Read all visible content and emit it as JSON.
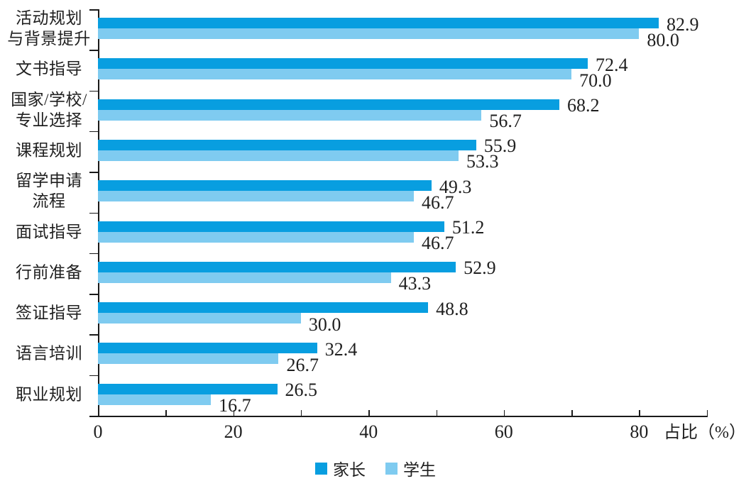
{
  "chart_data": {
    "type": "bar",
    "orientation": "horizontal",
    "title": "",
    "xlabel": "占比（%）",
    "xlim": [
      0,
      90
    ],
    "xticks": [
      0,
      20,
      40,
      60,
      80
    ],
    "minor_tick_step": 10,
    "grid": false,
    "legend_position": "bottom",
    "value_labels": true,
    "categories": [
      "活动规划与背景提升",
      "文书指导",
      "国家/学校/专业选择",
      "课程规划",
      "留学申请流程",
      "面试指导",
      "行前准备",
      "签证指导",
      "语言培训",
      "职业规划"
    ],
    "category_lines": [
      [
        "活动规划",
        "与背景提升"
      ],
      [
        "文书指导"
      ],
      [
        "国家/学校/",
        "专业选择"
      ],
      [
        "课程规划"
      ],
      [
        "留学申请",
        "流程"
      ],
      [
        "面试指导"
      ],
      [
        "行前准备"
      ],
      [
        "签证指导"
      ],
      [
        "语言培训"
      ],
      [
        "职业规划"
      ]
    ],
    "series": [
      {
        "name": "家长",
        "color": "#089ee0",
        "values": [
          82.9,
          72.4,
          68.2,
          55.9,
          49.3,
          51.2,
          52.9,
          48.8,
          32.4,
          26.5
        ]
      },
      {
        "name": "学生",
        "color": "#7fcbf0",
        "values": [
          80.0,
          70.0,
          56.7,
          53.3,
          46.7,
          46.7,
          43.3,
          30.0,
          26.7,
          16.7
        ]
      }
    ],
    "colors": {
      "axis": "#1a1a1a",
      "text": "#1f1f1f",
      "parents_bar": "#089ee0",
      "students_bar": "#7fcbf0"
    }
  }
}
